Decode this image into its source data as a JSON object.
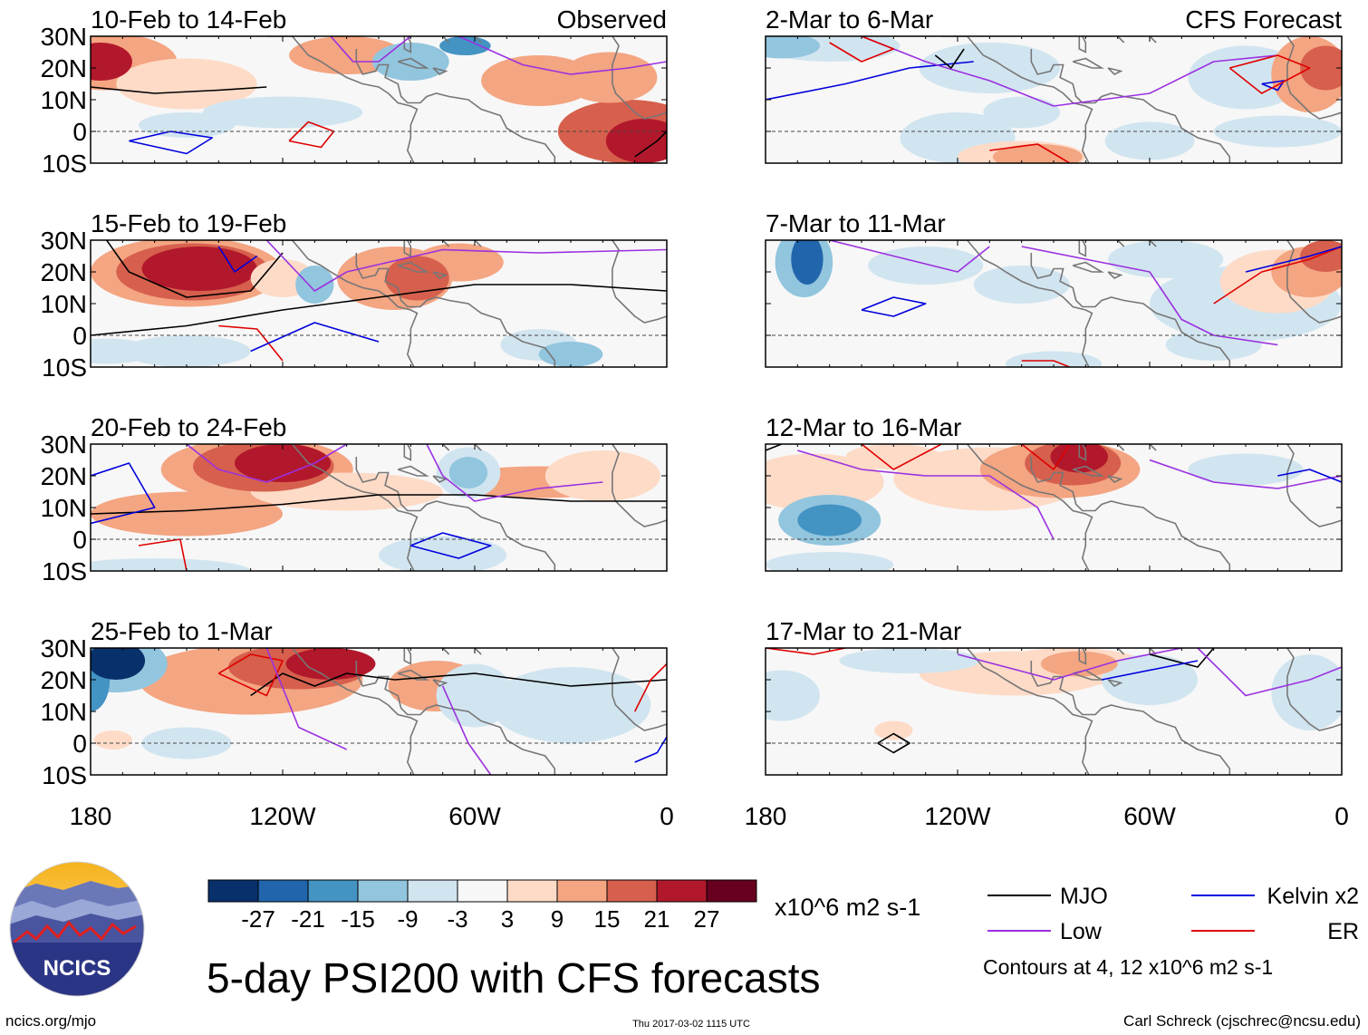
{
  "chart_data": {
    "type": "heatmap",
    "title": "5-day PSI200 with CFS forecasts",
    "variable": "PSI200",
    "units": "x10^6 m2 s-1",
    "colorbar": {
      "colors": [
        "#08306b",
        "#2166ac",
        "#4393c3",
        "#92c5de",
        "#d1e5f0",
        "#f7f7f7",
        "#fddbc7",
        "#f4a582",
        "#d6604d",
        "#b2182b",
        "#67001f"
      ],
      "tick_labels": [
        "-27",
        "-21",
        "-15",
        "-9",
        "-3",
        "3",
        "9",
        "15",
        "21",
        "27"
      ],
      "units_label": "x10^6 m2 s-1"
    },
    "x_axis": {
      "range": [
        -180,
        0
      ],
      "ticks": [
        -180,
        -120,
        -60,
        0
      ],
      "tick_labels": [
        "180",
        "120W",
        "60W",
        "0"
      ]
    },
    "y_axis": {
      "range": [
        -10,
        30
      ],
      "ticks": [
        30,
        20,
        10,
        0,
        -10
      ],
      "tick_labels": [
        "30N",
        "20N",
        "10N",
        "0",
        "10S"
      ]
    },
    "columns": [
      {
        "label": "Observed",
        "panels": [
          "10-Feb to 14-Feb",
          "15-Feb to 19-Feb",
          "20-Feb to 24-Feb",
          "25-Feb to 1-Mar"
        ]
      },
      {
        "label": "CFS Forecast",
        "panels": [
          "2-Mar to 6-Mar",
          "7-Mar to 11-Mar",
          "12-Mar to 16-Mar",
          "17-Mar to 21-Mar"
        ]
      }
    ],
    "legend": {
      "entries": [
        {
          "name": "MJO",
          "color": "#000000"
        },
        {
          "name": "Kelvin x2",
          "color": "#0000dd"
        },
        {
          "name": "Low",
          "color": "#9b30e0"
        },
        {
          "name": "ER",
          "color": "#e00000"
        }
      ],
      "note": "Contours at 4, 12 x10^6 m2 s-1"
    }
  },
  "footer": {
    "logo_text": "NCICS",
    "url": "ncics.org/mjo",
    "timestamp": "Thu 2017-03-02 1115 UTC",
    "credit": "Carl Schreck (cjschrec@ncsu.edu)"
  }
}
